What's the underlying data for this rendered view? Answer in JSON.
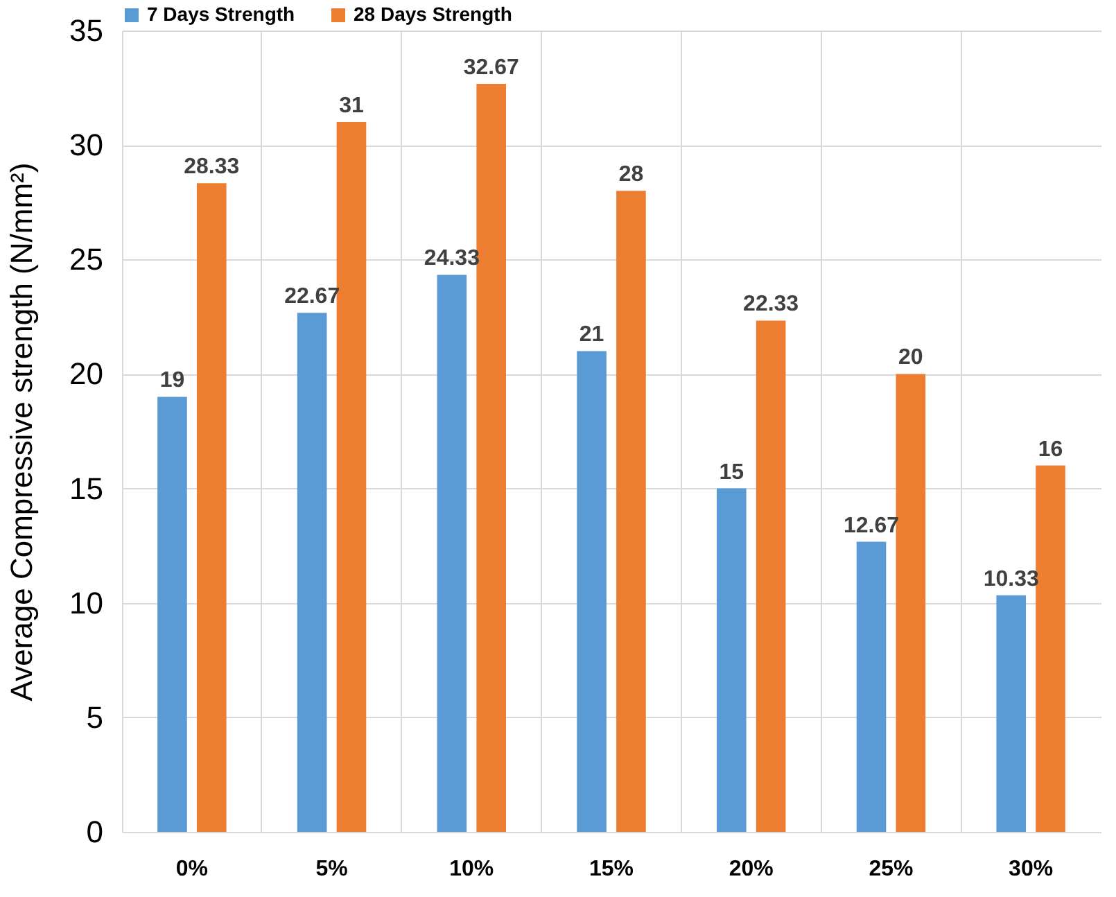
{
  "chart_data": {
    "type": "bar",
    "ylabel": "Average Compressive strength (N/mm²)",
    "categories": [
      "0%",
      "5%",
      "10%",
      "15%",
      "20%",
      "25%",
      "30%"
    ],
    "series": [
      {
        "name": "7 Days Strength",
        "color": "#5b9bd5",
        "values": [
          19,
          22.67,
          24.33,
          21,
          15,
          12.67,
          10.33
        ]
      },
      {
        "name": "28 Days Strength",
        "color": "#ed7d31",
        "values": [
          28.33,
          31,
          32.67,
          28,
          22.33,
          20,
          16
        ]
      }
    ],
    "ylim": [
      0,
      35
    ],
    "yticks": [
      0,
      5,
      10,
      15,
      20,
      25,
      30,
      35
    ],
    "grid": true,
    "legend": "top",
    "data_labels": true
  }
}
